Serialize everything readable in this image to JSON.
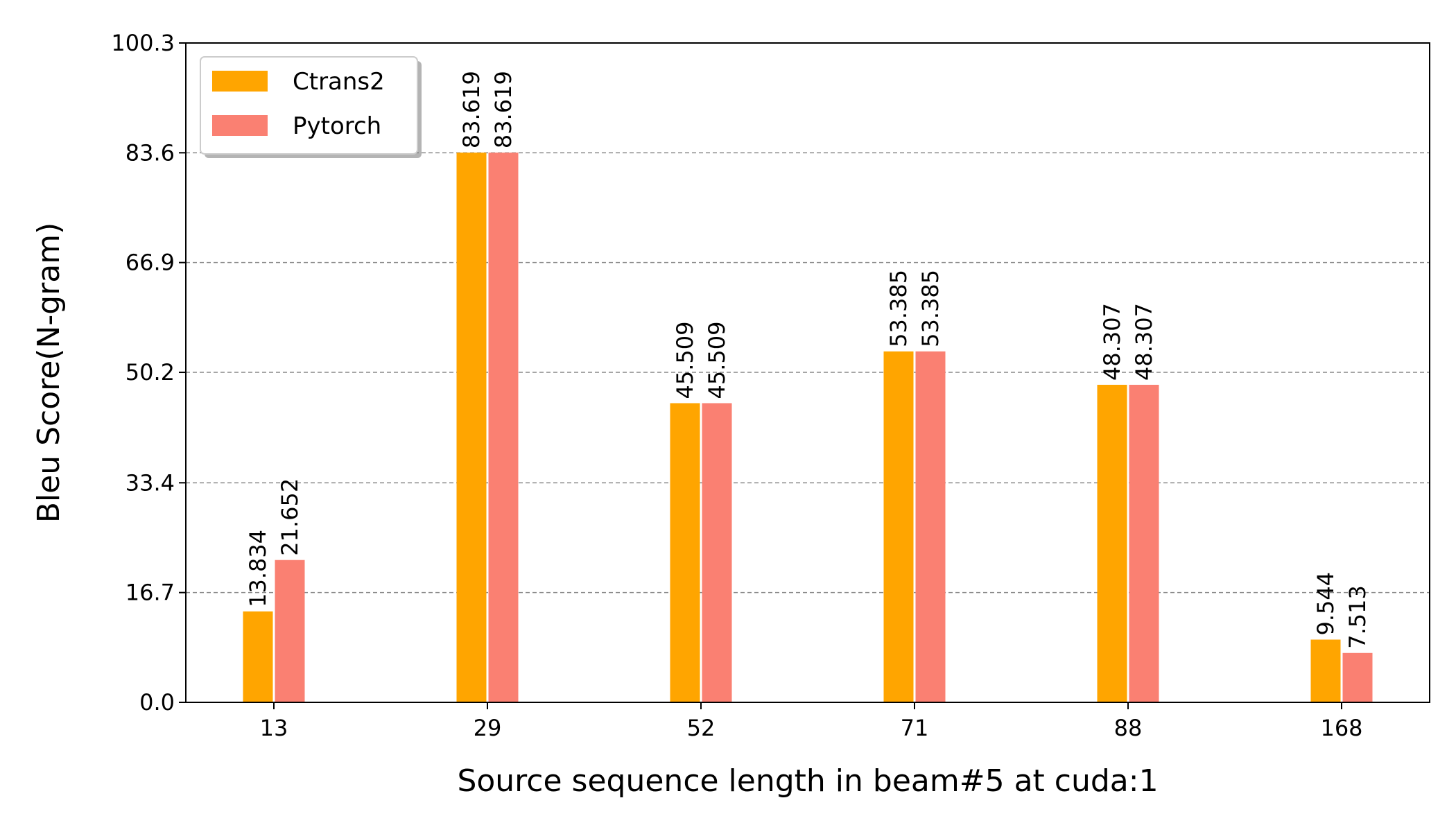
{
  "chart_data": {
    "type": "bar",
    "title": "",
    "xlabel": "Source sequence length in beam#5 at cuda:1",
    "ylabel": "Bleu Score(N-gram)",
    "categories": [
      "13",
      "29",
      "52",
      "71",
      "88",
      "168"
    ],
    "series": [
      {
        "name": "Ctrans2",
        "color": "#FFA500",
        "values": [
          13.834,
          83.619,
          45.509,
          53.385,
          48.307,
          9.544
        ],
        "labels": [
          "13.834",
          "83.619",
          "45.509",
          "53.385",
          "48.307",
          "9.544"
        ]
      },
      {
        "name": "Pytorch",
        "color": "#FA8072",
        "values": [
          21.652,
          83.619,
          45.509,
          53.385,
          48.307,
          7.513
        ],
        "labels": [
          "21.652",
          "83.619",
          "45.509",
          "53.385",
          "48.307",
          "7.513"
        ]
      }
    ],
    "yticks": [
      0.0,
      16.7,
      33.4,
      50.2,
      66.9,
      83.6,
      100.3
    ],
    "ytick_labels": [
      "0.0",
      "16.7",
      "33.4",
      "50.2",
      "66.9",
      "83.6",
      "100.3"
    ],
    "ylim": [
      0,
      100.3
    ],
    "grid": "y-dashed",
    "legend_position": "top-left"
  }
}
